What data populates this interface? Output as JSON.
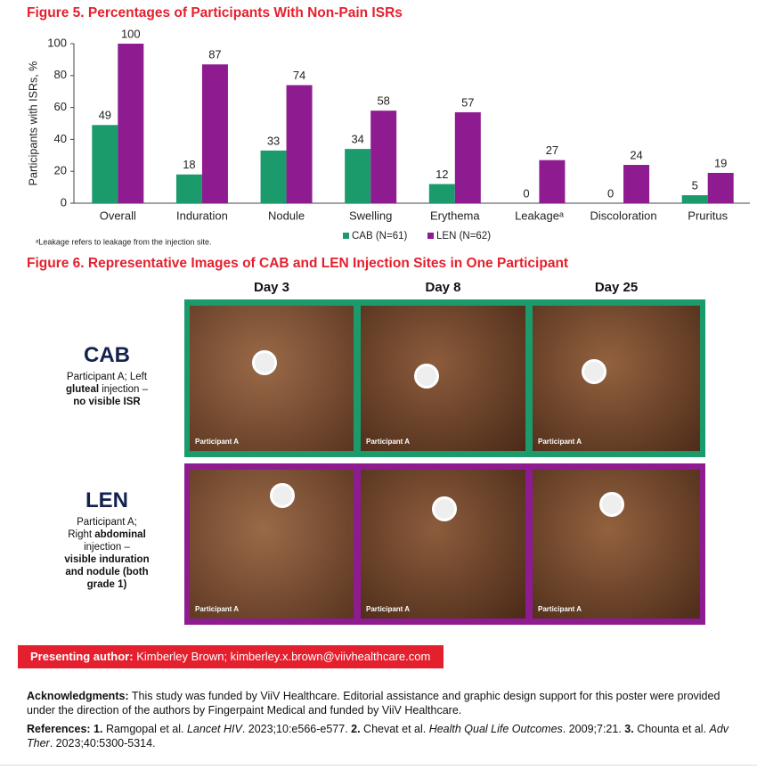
{
  "chart_data": {
    "type": "bar",
    "title": "Figure 5. Percentages of Participants With Non-Pain ISRs",
    "y_label": "Participants with ISRs, %",
    "categories": [
      "Overall",
      "Induration",
      "Nodule",
      "Swelling",
      "Erythema",
      "Leakageᵃ",
      "Discoloration",
      "Pruritus"
    ],
    "series": [
      {
        "name": "CAB (N=61)",
        "color": "#1b9a6b",
        "values": [
          49,
          18,
          33,
          34,
          12,
          0,
          0,
          5
        ]
      },
      {
        "name": "LEN (N=62)",
        "color": "#8e1b8f",
        "values": [
          100,
          87,
          74,
          58,
          57,
          27,
          24,
          19
        ]
      }
    ],
    "ylim": [
      0,
      100
    ],
    "yticks": [
      0,
      20,
      40,
      60,
      80,
      100
    ],
    "grid": false,
    "footnote": "ᵃLeakage refers to leakage from the injection site."
  },
  "figure6": {
    "title": "Figure 6. Representative Images of CAB and LEN Injection Sites in One Participant",
    "days": [
      "Day 3",
      "Day 8",
      "Day 25"
    ],
    "rows": [
      {
        "name": "CAB",
        "color": "#1b9a6b",
        "description": [
          [
            {
              "text": "Participant A; Left"
            }
          ],
          [
            {
              "text": "gluteal",
              "bold": true
            },
            {
              "text": " injection –"
            }
          ],
          [
            {
              "text": "no visible ISR",
              "bold": true
            }
          ]
        ],
        "panels": [
          "Participant A",
          "Participant A",
          "Participant A"
        ]
      },
      {
        "name": "LEN",
        "color": "#8e1b8f",
        "description": [
          [
            {
              "text": "Participant A;"
            }
          ],
          [
            {
              "text": "Right "
            },
            {
              "text": "abdominal",
              "bold": true
            }
          ],
          [
            {
              "text": "injection –"
            }
          ],
          [
            {
              "text": "visible induration",
              "bold": true
            }
          ],
          [
            {
              "text": "and nodule (both",
              "bold": true
            }
          ],
          [
            {
              "text": "grade 1)",
              "bold": true
            }
          ]
        ],
        "panels": [
          "Participant A",
          "Participant A",
          "Participant A"
        ]
      }
    ]
  },
  "presenting_author": {
    "label": "Presenting author:",
    "text": "Kimberley Brown; kimberley.x.brown@viivhealthcare.com"
  },
  "acknowledgments": [
    {
      "text": "Acknowledgments:",
      "bold": true
    },
    {
      "text": " This study was funded by ViiV Healthcare. Editorial assistance and graphic design support for this poster were provided under the direction of the authors by Fingerpaint Medical and funded by ViiV Healthcare."
    }
  ],
  "references": [
    {
      "text": "References: 1.",
      "bold": true
    },
    {
      "text": " Ramgopal et al. "
    },
    {
      "text": "Lancet HIV",
      "italic": true
    },
    {
      "text": ". 2023;10:e566-e577. "
    },
    {
      "text": "2.",
      "bold": true
    },
    {
      "text": " Chevat et al. "
    },
    {
      "text": "Health Qual Life Outcomes",
      "italic": true
    },
    {
      "text": ". 2009;7:21. "
    },
    {
      "text": "3.",
      "bold": true
    },
    {
      "text": " Chounta et al. "
    },
    {
      "text": "Adv Ther",
      "italic": true
    },
    {
      "text": ". 2023;40:5300-5314."
    }
  ]
}
